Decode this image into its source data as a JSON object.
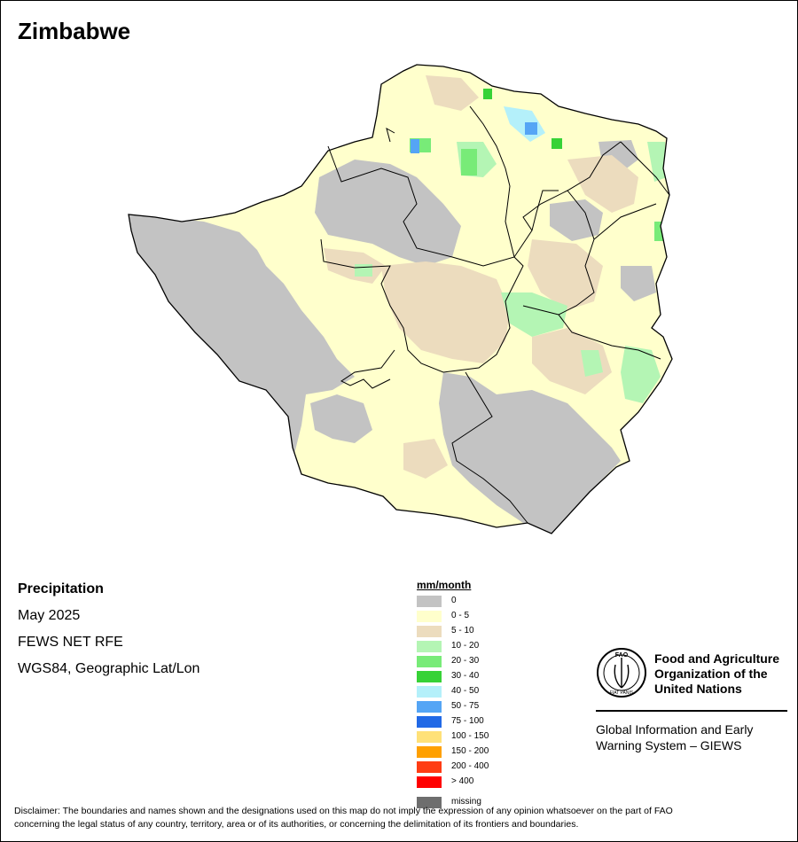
{
  "map": {
    "title": "Zimbabwe",
    "colors": {
      "outline": "#000000",
      "base": "#fffccc"
    }
  },
  "info": {
    "heading": "Precipitation",
    "period": "May 2025",
    "source": "FEWS NET RFE",
    "projection": "WGS84, Geographic Lat/Lon"
  },
  "legend": {
    "title": "mm/month",
    "items": [
      {
        "label": "0",
        "color": "#c3c3c3"
      },
      {
        "label": "0 - 5",
        "color": "#ffffcc"
      },
      {
        "label": "5 - 10",
        "color": "#ecdcbe"
      },
      {
        "label": "10 - 20",
        "color": "#b4f5b4"
      },
      {
        "label": "20 - 30",
        "color": "#78eb78"
      },
      {
        "label": "30 - 40",
        "color": "#37d237"
      },
      {
        "label": "40 - 50",
        "color": "#b4f0fa"
      },
      {
        "label": "50 - 75",
        "color": "#55a5f5"
      },
      {
        "label": "75 - 100",
        "color": "#2169e6"
      },
      {
        "label": "100 - 150",
        "color": "#ffe178"
      },
      {
        "label": "150 - 200",
        "color": "#ffa000"
      },
      {
        "label": "200 - 400",
        "color": "#ff3c14"
      },
      {
        "label": "> 400",
        "color": "#ff0000"
      }
    ],
    "missing": {
      "label": "missing",
      "color": "#6e6e6e"
    }
  },
  "organization": {
    "name_line1": "Food and Agriculture",
    "name_line2": "Organization of the",
    "name_line3": "United Nations",
    "sub_line1": "Global Information and Early",
    "sub_line2": "Warning System – GIEWS",
    "logo_text_top": "FAO",
    "logo_text_bottom": "FIAT PANIS"
  },
  "disclaimer": {
    "line1": "Disclaimer: The boundaries and names shown and the designations used on this map do not imply the expression of any opinion whatsoever on the part of FAO",
    "line2": "concerning the legal status of any country, territory, area or of its authorities, or concerning the delimitation of its frontiers and boundaries."
  }
}
